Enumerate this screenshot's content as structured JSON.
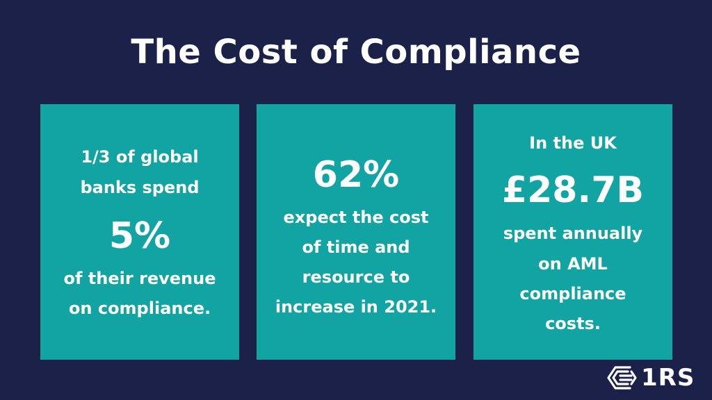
{
  "title": "The Cost of Compliance",
  "cards": [
    {
      "lines_before": [
        "1/3 of global",
        "banks spend"
      ],
      "stat": "5%",
      "lines_after": [
        "of their revenue",
        "on compliance."
      ]
    },
    {
      "lines_before": [],
      "stat": "62%",
      "lines_after": [
        "expect the cost",
        "of time and",
        "resource to",
        "increase in 2021."
      ]
    },
    {
      "lines_before": [
        "In the UK"
      ],
      "stat": "£28.7B",
      "lines_after": [
        "spent annually",
        "on AML",
        "compliance",
        "costs."
      ]
    }
  ],
  "logo": {
    "text": "1RS",
    "icon": "hexagon-s-logo-icon"
  },
  "colors": {
    "background": "#1b2148",
    "card": "#12a3a3",
    "text": "#ffffff"
  }
}
